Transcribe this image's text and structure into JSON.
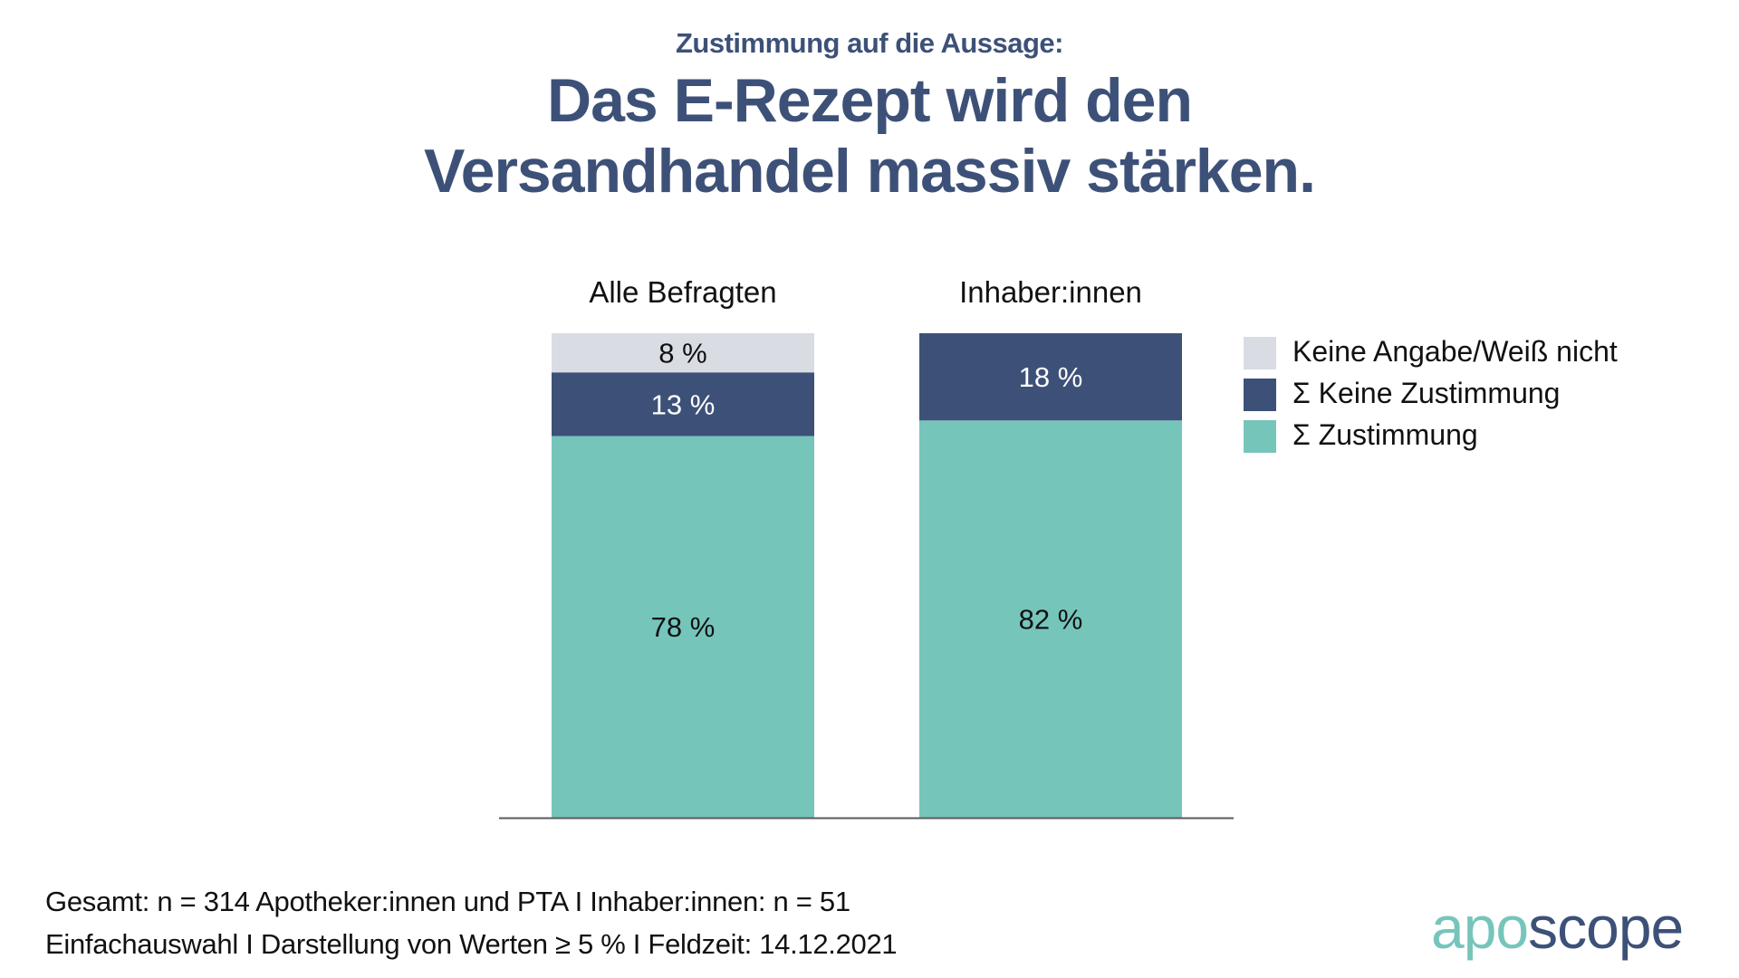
{
  "header": {
    "subtitle": "Zustimmung auf die Aussage:",
    "title_lines": [
      "Das E-Rezept wird den",
      "Versandhandel massiv stärken."
    ]
  },
  "colors": {
    "title": "#3d5178",
    "keine_angabe": "#d9dce3",
    "keine_zustimmung": "#3d5178",
    "zustimmung": "#76c5bb",
    "axis": "#5a5a5a"
  },
  "chart_data": {
    "type": "bar",
    "stacked": true,
    "title": "Das E-Rezept wird den Versandhandel massiv stärken.",
    "subtitle": "Zustimmung auf die Aussage:",
    "categories": [
      "Alle Befragten",
      "Inhaber:innen"
    ],
    "series": [
      {
        "name": "Σ Zustimmung",
        "values": [
          78,
          82
        ],
        "color": "#76c5bb",
        "label_color": "#111111"
      },
      {
        "name": "Σ Keine Zustimmung",
        "values": [
          13,
          18
        ],
        "color": "#3d5178",
        "label_color": "#ffffff"
      },
      {
        "name": "Keine Angabe/Weiß nicht",
        "values": [
          8,
          null
        ],
        "color": "#d9dce3",
        "label_color": "#111111"
      }
    ],
    "value_suffix": " %",
    "xlabel": "",
    "ylabel": "",
    "ylim": [
      0,
      100
    ],
    "grid": false,
    "legend_position": "right",
    "legend_order": [
      "Keine Angabe/Weiß nicht",
      "Σ Keine Zustimmung",
      "Σ Zustimmung"
    ]
  },
  "legend": {
    "items": [
      {
        "label": "Keine Angabe/Weiß nicht",
        "color": "#d9dce3"
      },
      {
        "label": "Σ Keine Zustimmung",
        "color": "#3d5178"
      },
      {
        "label": "Σ Zustimmung",
        "color": "#76c5bb"
      }
    ]
  },
  "footer": {
    "line1": "Gesamt: n = 314 Apotheker:innen und PTA I Inhaber:innen: n = 51",
    "line2": "Einfachauswahl I Darstellung von Werten ≥ 5 % I Feldzeit: 14.12.2021"
  },
  "logo": {
    "part1": "apo",
    "part2": "scope"
  }
}
